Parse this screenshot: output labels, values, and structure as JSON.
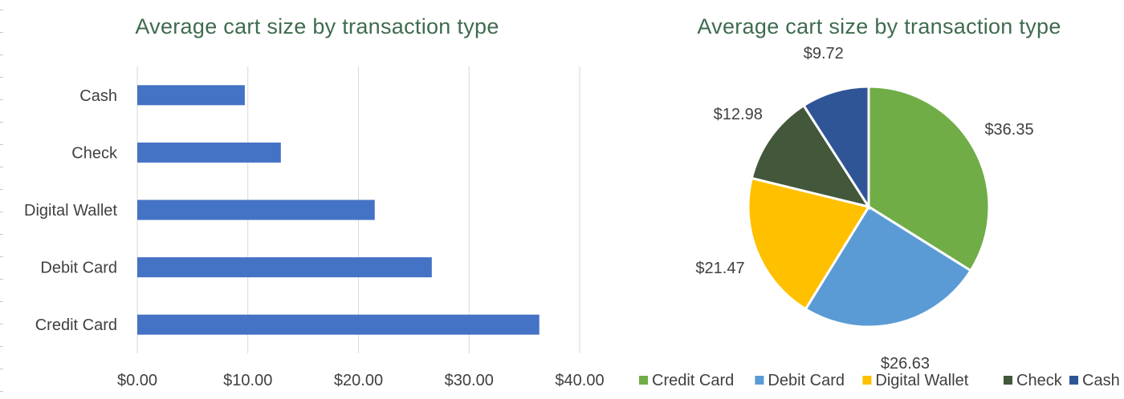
{
  "chart_data": [
    {
      "type": "bar",
      "orientation": "horizontal",
      "title": "Average cart size by transaction type",
      "categories": [
        "Credit Card",
        "Debit Card",
        "Digital Wallet",
        "Check",
        "Cash"
      ],
      "values": [
        36.35,
        26.63,
        21.47,
        12.98,
        9.72
      ],
      "xlim": [
        0,
        40
      ],
      "x_ticks": [
        "$0.00",
        "$10.00",
        "$20.00",
        "$30.00",
        "$40.00"
      ],
      "grid": "vertical",
      "bar_color": "#4472C4",
      "xlabel": "",
      "ylabel": ""
    },
    {
      "type": "pie",
      "title": "Average cart size by transaction type",
      "categories": [
        "Credit Card",
        "Debit Card",
        "Digital Wallet",
        "Check",
        "Cash"
      ],
      "values": [
        36.35,
        26.63,
        21.47,
        12.98,
        9.72
      ],
      "data_labels": [
        "$36.35",
        "$26.63",
        "$21.47",
        "$12.98",
        "$9.72"
      ],
      "colors": [
        "#70AD47",
        "#5B9BD5",
        "#FFC000",
        "#43573A",
        "#2F5597"
      ],
      "legend_position": "bottom"
    }
  ]
}
